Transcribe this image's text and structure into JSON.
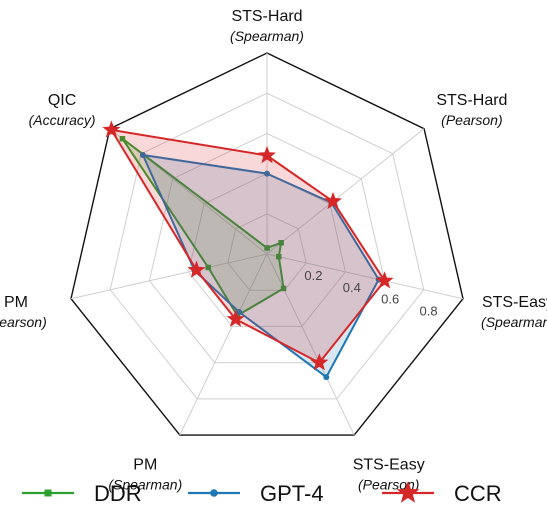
{
  "chart_data": {
    "type": "radar",
    "axes": [
      {
        "name": "STS-Hard",
        "metric": "Spearman"
      },
      {
        "name": "STS-Hard",
        "metric": "Pearson"
      },
      {
        "name": "STS-Easy",
        "metric": "Spearman"
      },
      {
        "name": "STS-Easy",
        "metric": "Pearson"
      },
      {
        "name": "PM",
        "metric": "Spearman"
      },
      {
        "name": "PM",
        "metric": "Pearson"
      },
      {
        "name": "QIC",
        "metric": "Accuracy"
      }
    ],
    "rlim": [
      0,
      1.0
    ],
    "ticks": [
      0.2,
      0.4,
      0.6,
      0.8
    ],
    "tick_labels": [
      "0.2",
      "0.4",
      "0.6",
      "0.8"
    ],
    "grid": true,
    "legend_position": "bottom",
    "series": [
      {
        "name": "DDR",
        "color": "#2ca02c",
        "marker": "square",
        "values": [
          0.03,
          0.09,
          0.06,
          0.19,
          0.34,
          0.3,
          0.92
        ]
      },
      {
        "name": "GPT-4",
        "color": "#1f77b4",
        "marker": "circle",
        "values": [
          0.4,
          0.41,
          0.57,
          0.68,
          0.32,
          0.37,
          0.79
        ]
      },
      {
        "name": "CCR",
        "color": "#d62728",
        "marker": "star",
        "values": [
          0.49,
          0.42,
          0.6,
          0.6,
          0.36,
          0.36,
          0.99
        ]
      }
    ]
  }
}
